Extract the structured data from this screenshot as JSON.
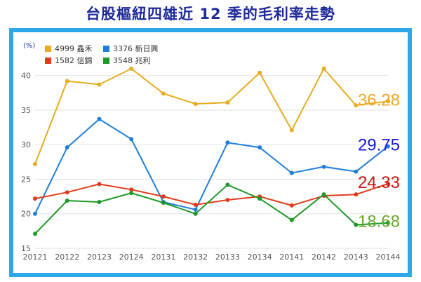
{
  "title": "台股樞紐四雄近 12 季的毛利率走勢",
  "chart_data": {
    "type": "line",
    "ylabel": "(%)",
    "ylim": [
      15,
      42
    ],
    "yticks": [
      15,
      20,
      25,
      30,
      35,
      40
    ],
    "categories": [
      "20121",
      "20122",
      "20123",
      "20124",
      "20131",
      "20132",
      "20133",
      "20134",
      "20141",
      "20142",
      "20143",
      "20144"
    ],
    "legend_position": "top-left",
    "series": [
      {
        "name": "4999 鑫禾",
        "color": "#e6ac1e",
        "values": [
          27.2,
          39.2,
          38.7,
          41.0,
          37.4,
          35.9,
          36.1,
          40.4,
          32.1,
          41.0,
          35.7,
          36.28
        ],
        "end_label": "36.28",
        "end_color": "#f0a828"
      },
      {
        "name": "3376 新日興",
        "color": "#1f7ed8",
        "values": [
          20.0,
          29.6,
          33.7,
          30.8,
          21.7,
          20.6,
          30.3,
          29.6,
          25.9,
          26.8,
          26.1,
          29.75
        ],
        "end_label": "29.75",
        "end_color": "#1a1ad8"
      },
      {
        "name": "1582 信錦",
        "color": "#e03c1c",
        "values": [
          22.2,
          23.1,
          24.3,
          23.5,
          22.5,
          21.3,
          22.0,
          22.5,
          21.2,
          22.6,
          22.8,
          24.33
        ],
        "end_label": "24.33",
        "end_color": "#c81414"
      },
      {
        "name": "3548 兆利",
        "color": "#1c9a28",
        "values": [
          17.1,
          21.9,
          21.7,
          23.0,
          21.6,
          20.0,
          24.2,
          22.2,
          19.1,
          22.8,
          18.4,
          18.68
        ],
        "end_label": "18.68",
        "end_color": "#6aa82a"
      }
    ]
  }
}
